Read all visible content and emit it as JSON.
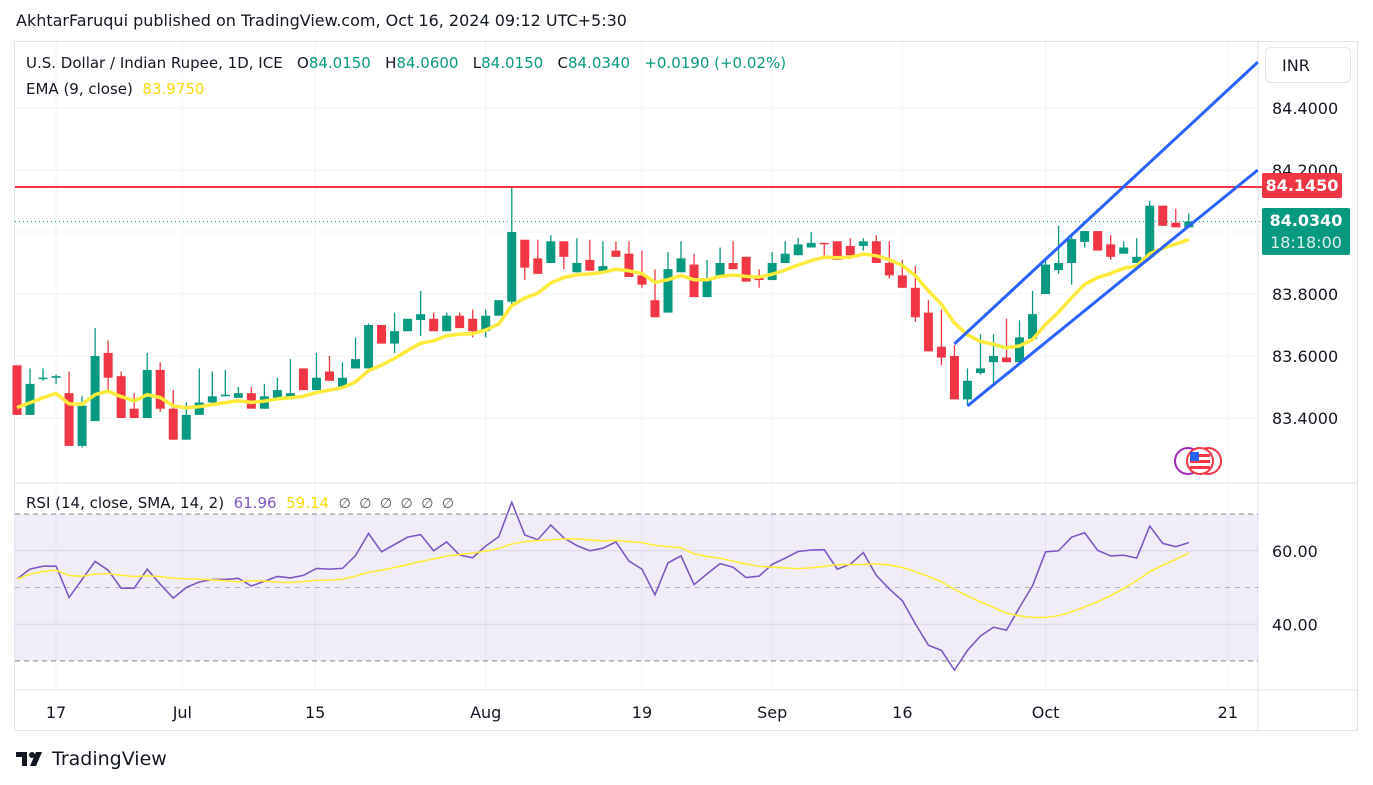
{
  "publisher_line": "AkhtarFaruqui published on TradingView.com, Oct 16, 2024 09:12 UTC+5:30",
  "legend": {
    "symbol": "U.S. Dollar / Indian Rupee, 1D, ICE",
    "o_label": "O",
    "o": "84.0150",
    "h_label": "H",
    "h": "84.0600",
    "l_label": "L",
    "l": "84.0150",
    "c_label": "C",
    "c": "84.0340",
    "change": "+0.0190 (+0.02%)",
    "ema_label": "EMA (9, close)",
    "ema_value": "83.9750",
    "rsi_label": "RSI (14, close, SMA, 14, 2)",
    "rsi_value": "61.96",
    "rsi_sma_value": "59.14",
    "rsi_extra": "∅ ∅ ∅ ∅ ∅ ∅"
  },
  "currency_button": "INR",
  "resistance_label": "84.1450",
  "last_price_label": "84.0340",
  "countdown_label": "18:18:00",
  "footer_logo": "TradingView",
  "colors": {
    "up": "#089981",
    "down": "#F23645",
    "ema": "#FFEB3B",
    "channel": "#2962FF",
    "rsi": "#7E57C2",
    "rsi_sma": "#FFEB3B",
    "resistance": "#F23645"
  },
  "chart_data": {
    "type": "candlestick",
    "title": "U.S. Dollar / Indian Rupee, 1D, ICE",
    "price_ticks": [
      "84.4000",
      "84.2000",
      "83.8000",
      "83.6000",
      "83.4000"
    ],
    "price_tick_values": [
      84.4,
      84.2,
      83.8,
      83.6,
      83.4
    ],
    "x_ticks": [
      {
        "label": "17",
        "index": 3
      },
      {
        "label": "Jul",
        "index": 12.7
      },
      {
        "label": "15",
        "index": 22.9
      },
      {
        "label": "Aug",
        "index": 36
      },
      {
        "label": "19",
        "index": 48
      },
      {
        "label": "Sep",
        "index": 58
      },
      {
        "label": "16",
        "index": 68
      },
      {
        "label": "Oct",
        "index": 79
      },
      {
        "label": "21",
        "index": 93
      }
    ],
    "ohlc": [
      [
        83.57,
        83.57,
        83.41,
        83.41
      ],
      [
        83.41,
        83.56,
        83.41,
        83.51
      ],
      [
        83.53,
        83.56,
        83.52,
        83.53
      ],
      [
        83.53,
        83.54,
        83.51,
        83.535
      ],
      [
        83.48,
        83.55,
        83.31,
        83.31
      ],
      [
        83.31,
        83.47,
        83.305,
        83.44
      ],
      [
        83.39,
        83.69,
        83.39,
        83.6
      ],
      [
        83.61,
        83.65,
        83.49,
        83.53
      ],
      [
        83.535,
        83.55,
        83.4,
        83.4
      ],
      [
        83.43,
        83.48,
        83.4,
        83.4
      ],
      [
        83.4,
        83.61,
        83.4,
        83.555
      ],
      [
        83.555,
        83.58,
        83.42,
        83.43
      ],
      [
        83.43,
        83.49,
        83.33,
        83.33
      ],
      [
        83.33,
        83.45,
        83.33,
        83.41
      ],
      [
        83.41,
        83.56,
        83.41,
        83.45
      ],
      [
        83.45,
        83.55,
        83.44,
        83.47
      ],
      [
        83.47,
        83.555,
        83.47,
        83.475
      ],
      [
        83.465,
        83.5,
        83.465,
        83.48
      ],
      [
        83.48,
        83.5,
        83.43,
        83.43
      ],
      [
        83.43,
        83.51,
        83.43,
        83.47
      ],
      [
        83.465,
        83.53,
        83.46,
        83.49
      ],
      [
        83.47,
        83.59,
        83.47,
        83.48
      ],
      [
        83.56,
        83.56,
        83.49,
        83.49
      ],
      [
        83.49,
        83.61,
        83.49,
        83.53
      ],
      [
        83.55,
        83.6,
        83.52,
        83.52
      ],
      [
        83.5,
        83.58,
        83.5,
        83.53
      ],
      [
        83.56,
        83.66,
        83.56,
        83.59
      ],
      [
        83.56,
        83.705,
        83.56,
        83.7
      ],
      [
        83.7,
        83.7,
        83.64,
        83.64
      ],
      [
        83.64,
        83.74,
        83.61,
        83.68
      ],
      [
        83.68,
        83.72,
        83.68,
        83.72
      ],
      [
        83.716,
        83.81,
        83.665,
        83.735
      ],
      [
        83.72,
        83.74,
        83.68,
        83.68
      ],
      [
        83.68,
        83.74,
        83.68,
        83.73
      ],
      [
        83.73,
        83.74,
        83.69,
        83.69
      ],
      [
        83.72,
        83.75,
        83.66,
        83.68
      ],
      [
        83.68,
        83.75,
        83.66,
        83.73
      ],
      [
        83.73,
        83.78,
        83.73,
        83.78
      ],
      [
        83.775,
        84.145,
        83.76,
        84.0
      ],
      [
        83.975,
        83.975,
        83.845,
        83.885
      ],
      [
        83.915,
        83.975,
        83.865,
        83.865
      ],
      [
        83.9,
        83.99,
        83.9,
        83.97
      ],
      [
        83.97,
        83.97,
        83.88,
        83.92
      ],
      [
        83.87,
        83.98,
        83.87,
        83.9
      ],
      [
        83.91,
        83.975,
        83.875,
        83.875
      ],
      [
        83.87,
        83.97,
        83.87,
        83.89
      ],
      [
        83.94,
        83.97,
        83.92,
        83.92
      ],
      [
        83.93,
        83.97,
        83.855,
        83.855
      ],
      [
        83.86,
        83.94,
        83.82,
        83.83
      ],
      [
        83.78,
        83.88,
        83.725,
        83.725
      ],
      [
        83.74,
        83.935,
        83.74,
        83.88
      ],
      [
        83.87,
        83.97,
        83.87,
        83.915
      ],
      [
        83.895,
        83.93,
        83.79,
        83.79
      ],
      [
        83.79,
        83.91,
        83.79,
        83.845
      ],
      [
        83.86,
        83.95,
        83.86,
        83.9
      ],
      [
        83.9,
        83.97,
        83.88,
        83.88
      ],
      [
        83.92,
        83.92,
        83.84,
        83.84
      ],
      [
        83.86,
        83.88,
        83.82,
        83.845
      ],
      [
        83.845,
        83.935,
        83.845,
        83.9
      ],
      [
        83.9,
        83.97,
        83.9,
        83.93
      ],
      [
        83.925,
        83.98,
        83.925,
        83.96
      ],
      [
        83.95,
        84.0,
        83.95,
        83.965
      ],
      [
        83.965,
        83.965,
        83.915,
        83.963
      ],
      [
        83.97,
        83.97,
        83.91,
        83.91
      ],
      [
        83.955,
        83.98,
        83.925,
        83.925
      ],
      [
        83.955,
        83.98,
        83.94,
        83.97
      ],
      [
        83.97,
        83.99,
        83.9,
        83.9
      ],
      [
        83.9,
        83.97,
        83.85,
        83.86
      ],
      [
        83.86,
        83.91,
        83.82,
        83.82
      ],
      [
        83.82,
        83.89,
        83.71,
        83.725
      ],
      [
        83.74,
        83.78,
        83.615,
        83.615
      ],
      [
        83.63,
        83.75,
        83.57,
        83.595
      ],
      [
        83.6,
        83.635,
        83.46,
        83.46
      ],
      [
        83.46,
        83.56,
        83.44,
        83.52
      ],
      [
        83.545,
        83.67,
        83.54,
        83.56
      ],
      [
        83.58,
        83.67,
        83.51,
        83.6
      ],
      [
        83.595,
        83.72,
        83.58,
        83.58
      ],
      [
        83.58,
        83.715,
        83.58,
        83.66
      ],
      [
        83.655,
        83.81,
        83.655,
        83.735
      ],
      [
        83.8,
        83.915,
        83.8,
        83.895
      ],
      [
        83.877,
        84.02,
        83.865,
        83.9
      ],
      [
        83.9,
        83.99,
        83.83,
        83.977
      ],
      [
        83.968,
        84.003,
        83.95,
        84.003
      ],
      [
        84.003,
        84.003,
        83.94,
        83.94
      ],
      [
        83.96,
        83.99,
        83.91,
        83.92
      ],
      [
        83.93,
        83.97,
        83.93,
        83.95
      ],
      [
        83.9,
        83.98,
        83.9,
        83.92
      ],
      [
        83.92,
        84.1,
        83.92,
        84.085
      ],
      [
        84.085,
        84.085,
        84.02,
        84.02
      ],
      [
        84.03,
        84.075,
        84.015,
        84.015
      ],
      [
        84.015,
        84.06,
        84.015,
        84.034
      ]
    ],
    "ema_period": 9,
    "ema_seed": 83.44,
    "resistance": 84.145,
    "last_close": 84.034,
    "channel": [
      {
        "name": "upper",
        "from": [
          72,
          83.639
        ],
        "to": [
          95.3,
          84.548
        ]
      },
      {
        "name": "lower",
        "from": [
          73,
          83.439
        ],
        "to": [
          95.3,
          84.2
        ]
      }
    ],
    "rsi": {
      "period": 14,
      "sma_period": 14,
      "bands": [
        70,
        50,
        30
      ],
      "ticks": [
        "60.00",
        "40.00"
      ],
      "tick_values": [
        60,
        40
      ],
      "values": [
        52.3,
        55,
        55.8,
        55.8,
        47.3,
        52.2,
        57.1,
        54.7,
        49.8,
        49.8,
        55,
        50.9,
        47.1,
        50,
        51.5,
        52.2,
        52.2,
        52.5,
        50.4,
        51.7,
        53,
        52.6,
        53.3,
        55.2,
        55,
        55.2,
        58.7,
        64.7,
        59.7,
        61.7,
        63.7,
        64.4,
        60,
        62.4,
        58.8,
        58.1,
        61.3,
        63.8,
        73.2,
        64.3,
        63,
        67,
        63.5,
        61.4,
        60,
        60.7,
        62.4,
        57.2,
        55,
        48,
        56.7,
        58.6,
        50.8,
        53.7,
        56.5,
        55.5,
        52.7,
        53.1,
        56.3,
        58,
        59.8,
        60.2,
        60.3,
        55,
        56.3,
        59.5,
        53.3,
        49.6,
        46.4,
        40.1,
        34.3,
        32.9,
        27.5,
        32.9,
        36.8,
        39.2,
        38.4,
        44.6,
        50.5,
        59.7,
        60,
        63.7,
        64.9,
        60.1,
        58.6,
        58.8,
        58,
        66.7,
        62,
        61.1,
        62.2
      ]
    }
  }
}
